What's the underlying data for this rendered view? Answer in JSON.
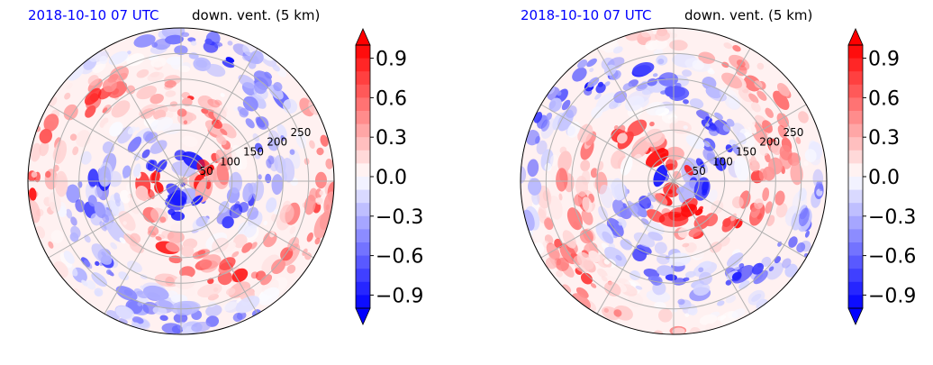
{
  "chart_data": [
    {
      "type": "heatmap",
      "projection": "polar",
      "title_left": "2018-10-10 07 UTC",
      "title_right": "down. vent. (5 km)",
      "radial_ticks": [
        "50",
        "100",
        "150",
        "200",
        "250"
      ],
      "radial_range": [
        0,
        300
      ],
      "grid": true,
      "colorbar": {
        "ticks": [
          "0.9",
          "0.6",
          "0.3",
          "0.0",
          "−0.3",
          "−0.6",
          "−0.9"
        ],
        "range": [
          -1.0,
          1.0
        ],
        "extend": "both",
        "cmap": "bwr"
      },
      "seed": 7
    },
    {
      "type": "heatmap",
      "projection": "polar",
      "title_left": "2018-10-10 07 UTC",
      "title_right": "down. vent. (5 km)",
      "radial_ticks": [
        "50",
        "100",
        "150",
        "200",
        "250"
      ],
      "radial_range": [
        0,
        300
      ],
      "grid": true,
      "colorbar": {
        "ticks": [
          "0.9",
          "0.6",
          "0.3",
          "0.0",
          "−0.3",
          "−0.6",
          "−0.9"
        ],
        "range": [
          -1.0,
          1.0
        ],
        "extend": "both",
        "cmap": "bwr"
      },
      "seed": 19
    }
  ]
}
